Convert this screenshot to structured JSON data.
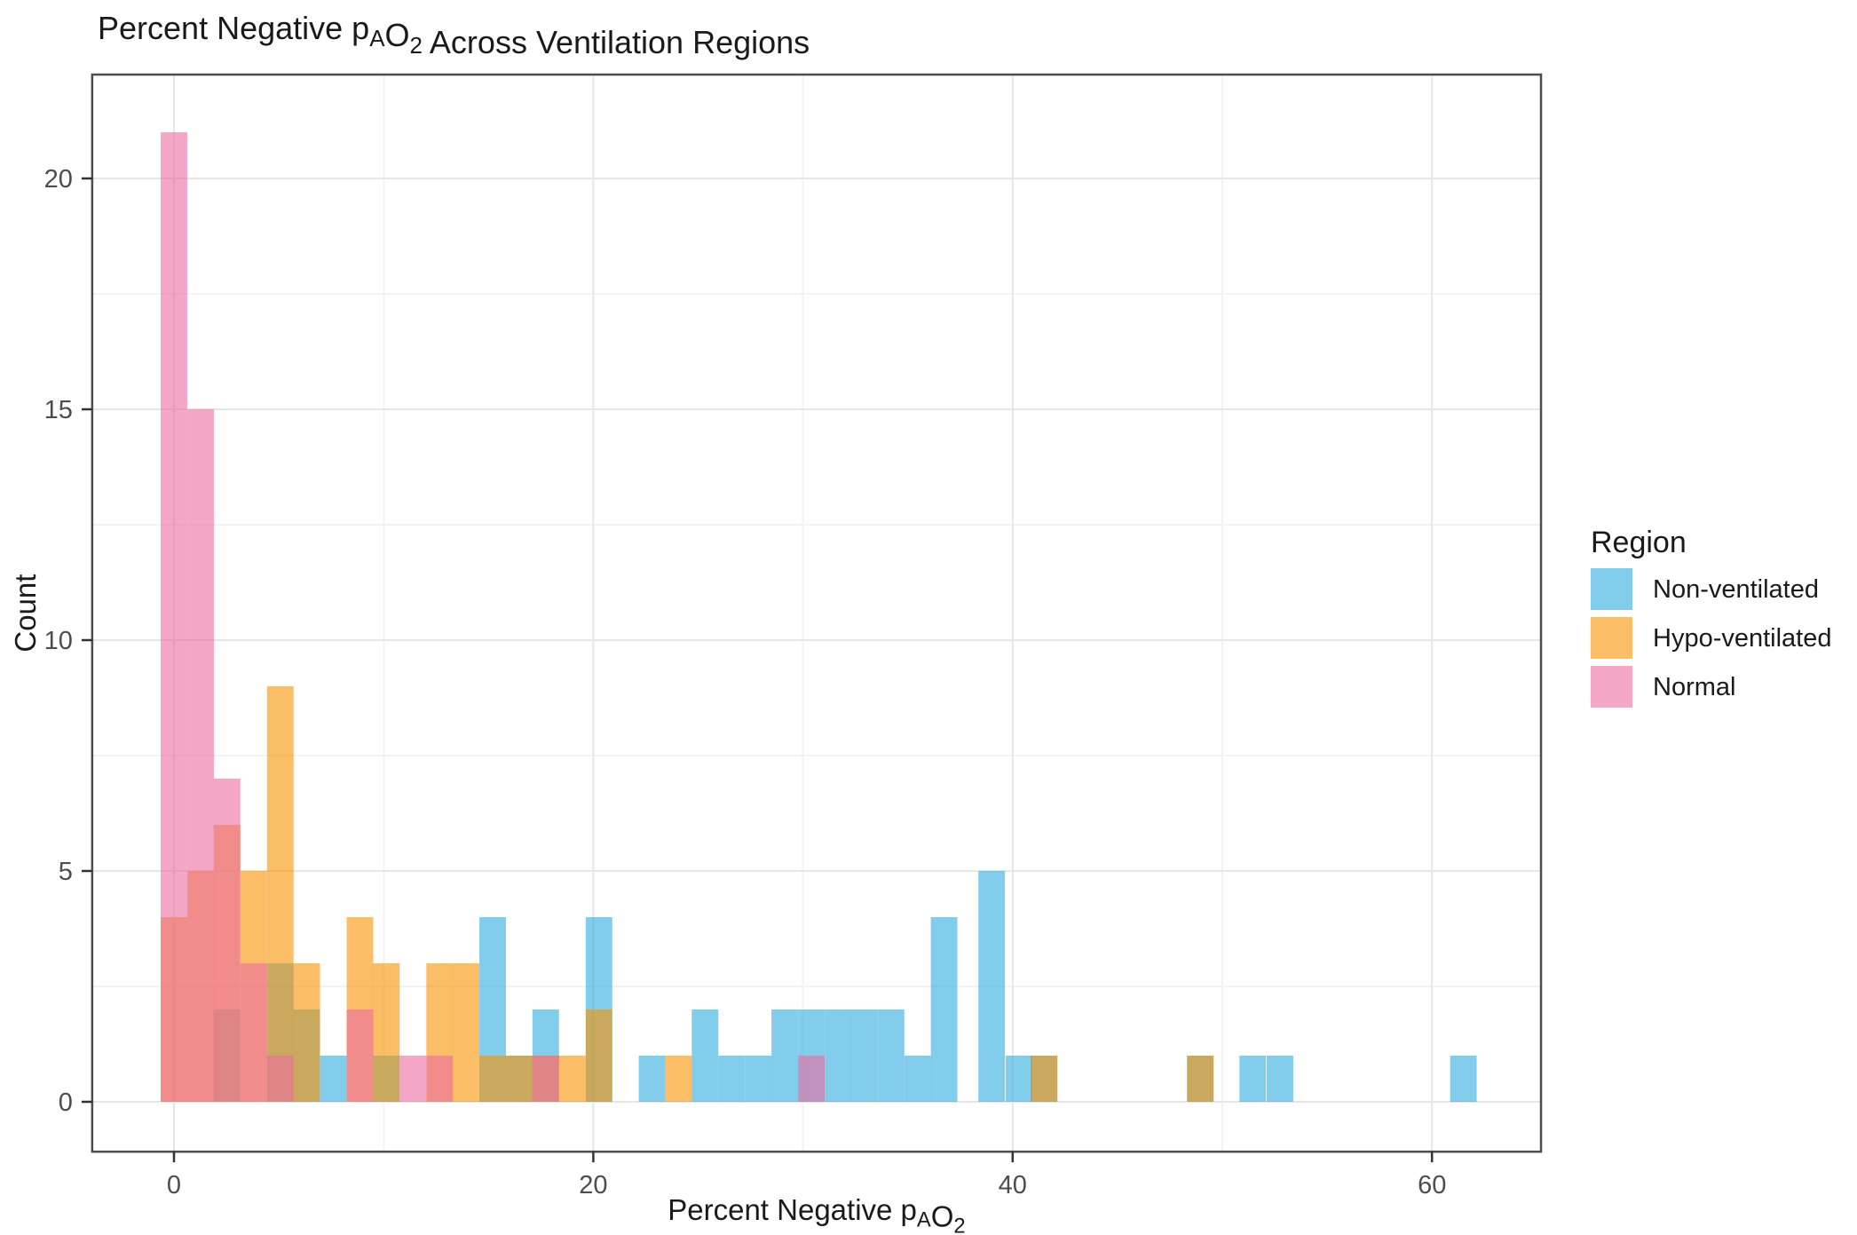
{
  "page": {
    "background": "#ffffff"
  },
  "chart_data": {
    "type": "histogram",
    "title_parts": [
      {
        "t": "Percent Negative p"
      },
      {
        "t": "A",
        "sub": true
      },
      {
        "t": "O"
      },
      {
        "t": "2",
        "sub": true
      },
      {
        "t": " Across Ventilation Regions"
      }
    ],
    "title_plain": "Percent Negative pAO2 Across Ventilation Regions",
    "xlabel_parts": [
      {
        "t": "Percent Negative p"
      },
      {
        "t": "A",
        "sub": true
      },
      {
        "t": "O"
      },
      {
        "t": "2",
        "sub": true
      }
    ],
    "xlabel_plain": "Percent Negative pAO2",
    "ylabel": "Count",
    "x_ticks": [
      0,
      20,
      40,
      60
    ],
    "y_ticks": [
      0,
      5,
      10,
      15,
      20
    ],
    "x_minor": [
      10,
      30,
      50
    ],
    "y_minor": [
      2.5,
      7.5,
      12.5,
      17.5
    ],
    "xlim": [
      -3.9,
      65.2
    ],
    "ylim": [
      -1.08,
      22.25
    ],
    "binwidth": 1.2667,
    "alpha": 0.6,
    "grid": {
      "major_color": "#e6e6e6",
      "minor_color": "#f3f3f3"
    },
    "axis_text_color": "#4d4d4d",
    "title_color": "#1a1a1a",
    "legend": {
      "title": "Region",
      "entries": [
        {
          "label": "Non-ventilated",
          "color": "#2FACDF"
        },
        {
          "label": "Hypo-ventilated",
          "color": "#F89100"
        },
        {
          "label": "Normal",
          "color": "#EC6BA2"
        }
      ]
    },
    "series": [
      {
        "name": "Non-ventilated",
        "color": "#2FACDF",
        "bins": [
          [
            2.53,
            2
          ],
          [
            5.07,
            3
          ],
          [
            6.33,
            2
          ],
          [
            7.6,
            1
          ],
          [
            10.13,
            1
          ],
          [
            15.2,
            4
          ],
          [
            16.47,
            1
          ],
          [
            17.73,
            2
          ],
          [
            20.27,
            4
          ],
          [
            22.8,
            1
          ],
          [
            25.33,
            2
          ],
          [
            26.6,
            1
          ],
          [
            27.87,
            1
          ],
          [
            29.13,
            2
          ],
          [
            30.4,
            2
          ],
          [
            31.67,
            2
          ],
          [
            32.93,
            2
          ],
          [
            34.2,
            2
          ],
          [
            35.47,
            1
          ],
          [
            36.73,
            4
          ],
          [
            39.0,
            5
          ],
          [
            40.3,
            1
          ],
          [
            41.5,
            1
          ],
          [
            48.95,
            1
          ],
          [
            51.45,
            1
          ],
          [
            52.75,
            1
          ],
          [
            61.5,
            1
          ]
        ]
      },
      {
        "name": "Hypo-ventilated",
        "color": "#F89100",
        "bins": [
          [
            0.0,
            4
          ],
          [
            1.27,
            5
          ],
          [
            2.53,
            6
          ],
          [
            3.8,
            5
          ],
          [
            5.07,
            9
          ],
          [
            6.33,
            3
          ],
          [
            8.87,
            4
          ],
          [
            10.13,
            3
          ],
          [
            12.67,
            3
          ],
          [
            13.93,
            3
          ],
          [
            15.2,
            1
          ],
          [
            16.47,
            1
          ],
          [
            17.73,
            1
          ],
          [
            19.0,
            1
          ],
          [
            20.27,
            2
          ],
          [
            24.07,
            1
          ],
          [
            41.5,
            1
          ],
          [
            48.95,
            1
          ]
        ]
      },
      {
        "name": "Normal",
        "color": "#EC6BA2",
        "bins": [
          [
            0.0,
            21
          ],
          [
            1.27,
            15
          ],
          [
            2.53,
            7
          ],
          [
            3.8,
            3
          ],
          [
            5.07,
            1
          ],
          [
            8.87,
            2
          ],
          [
            11.4,
            1
          ],
          [
            12.67,
            1
          ],
          [
            17.73,
            1
          ],
          [
            30.4,
            1
          ]
        ]
      }
    ]
  }
}
